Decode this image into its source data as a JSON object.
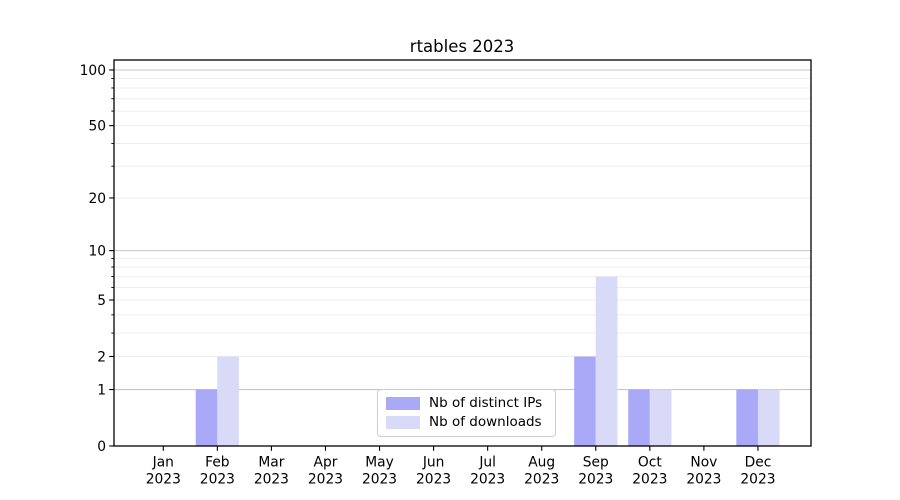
{
  "chart_data": {
    "type": "bar",
    "title": "rtables 2023",
    "x": {
      "months": [
        "Jan",
        "Feb",
        "Mar",
        "Apr",
        "May",
        "Jun",
        "Jul",
        "Aug",
        "Sep",
        "Oct",
        "Nov",
        "Dec"
      ],
      "year": "2023"
    },
    "series": [
      {
        "name": "Nb of distinct IPs",
        "color": "#a9a9f7",
        "values": [
          0,
          1,
          0,
          0,
          0,
          0,
          0,
          0,
          2,
          1,
          0,
          1
        ]
      },
      {
        "name": "Nb of downloads",
        "color": "#d9d9f8",
        "values": [
          0,
          2,
          0,
          0,
          0,
          0,
          0,
          0,
          7,
          1,
          0,
          1
        ]
      }
    ],
    "y_axis": {
      "scale": "log1p",
      "tick_values": [
        0,
        1,
        2,
        5,
        10,
        20,
        50,
        100
      ],
      "minor_tick_values": [
        3,
        4,
        6,
        7,
        8,
        9,
        30,
        40,
        60,
        70,
        80,
        90
      ],
      "ylim": [
        0,
        113
      ]
    },
    "grid": {
      "on": true,
      "major_color": "#c6c6c6",
      "minor_color": "#eeeeee",
      "major_values": [
        1,
        10,
        100
      ]
    },
    "legend": {
      "position": "lower center"
    }
  }
}
